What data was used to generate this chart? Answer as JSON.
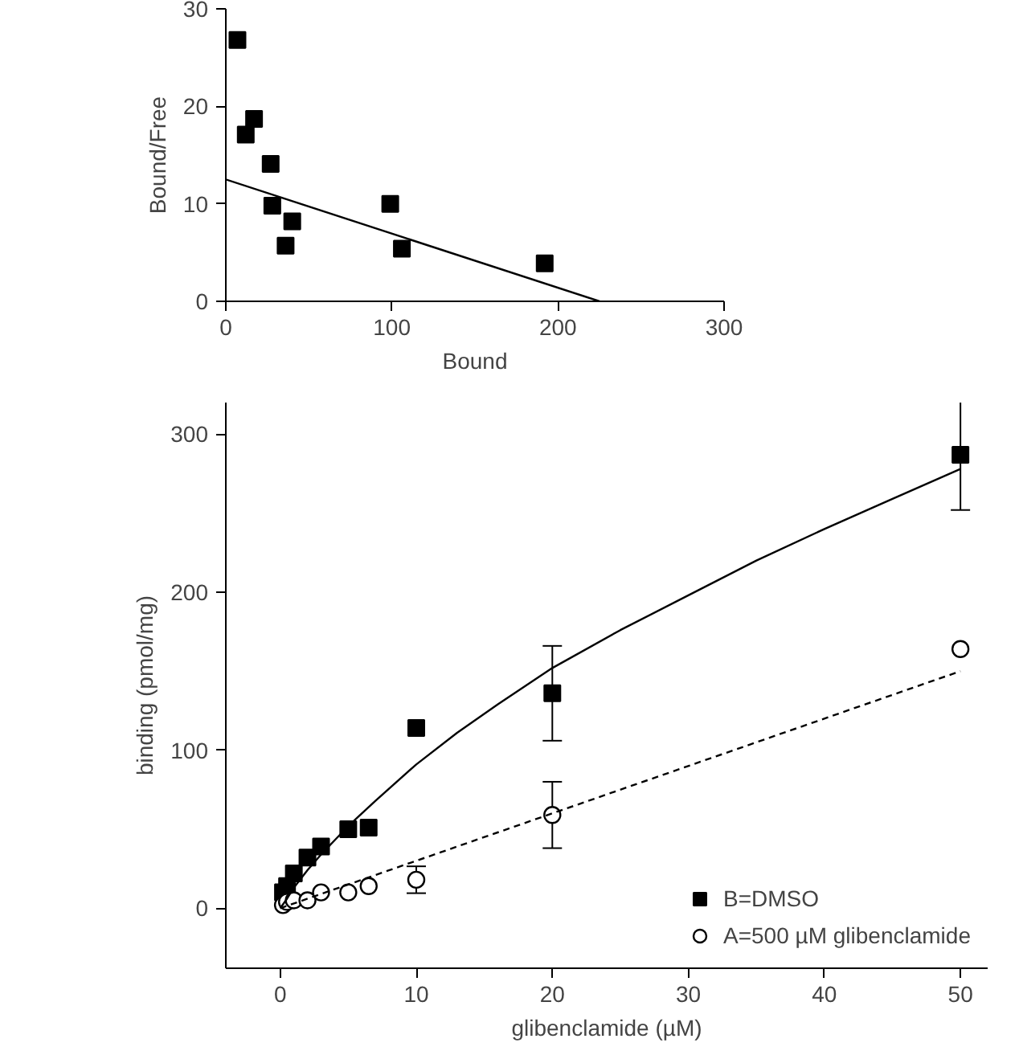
{
  "chart_data": [
    {
      "type": "scatter",
      "xlabel": "Bound",
      "ylabel": "Bound/Free",
      "xlim": [
        0,
        300
      ],
      "ylim": [
        0,
        30
      ],
      "xticks": [
        0,
        100,
        200,
        300
      ],
      "yticks": [
        0,
        10,
        20,
        30
      ],
      "grid": false,
      "legend": false,
      "series": [
        {
          "type": "scatter",
          "marker": "square",
          "color": "#000000",
          "x": [
            7,
            12,
            17,
            27,
            28,
            36,
            40,
            99,
            106,
            192
          ],
          "values": [
            26.8,
            17.1,
            18.7,
            14.1,
            9.8,
            5.7,
            8.2,
            10,
            5.4,
            3.9
          ]
        },
        {
          "type": "line",
          "marker": "none",
          "line_style": "solid",
          "color": "#000000",
          "x": [
            0,
            225
          ],
          "values": [
            12.5,
            0
          ]
        }
      ]
    },
    {
      "type": "scatter",
      "xlabel": "glibenclamide (µM)",
      "ylabel": "binding (pmol/mg)",
      "xlim": [
        -4,
        52
      ],
      "ylim": [
        -38,
        320
      ],
      "xticks": [
        0,
        10,
        20,
        30,
        40,
        50
      ],
      "yticks": [
        0,
        100,
        200,
        300
      ],
      "grid": false,
      "legend": "bottom right",
      "series": [
        {
          "type": "scatter",
          "name": "B=DMSO",
          "marker": "square",
          "color": "#000000",
          "x": [
            0.2,
            0.5,
            1,
            2,
            3,
            5,
            6.5,
            10,
            20,
            50
          ],
          "values": [
            10,
            14,
            22,
            32,
            39,
            50,
            51,
            114,
            136,
            287
          ],
          "errors": [
            null,
            null,
            null,
            null,
            null,
            null,
            null,
            null,
            30,
            35
          ]
        },
        {
          "type": "scatter",
          "name": "A=500 µM glibenclamide",
          "marker": "circle",
          "color": "#000000",
          "x": [
            0.2,
            0.5,
            1,
            2,
            3,
            5,
            6.5,
            10,
            20,
            50
          ],
          "values": [
            2,
            4,
            5,
            5,
            10,
            10,
            14,
            18,
            59,
            164
          ],
          "errors": [
            null,
            null,
            null,
            null,
            null,
            null,
            null,
            8.5,
            21,
            null
          ]
        },
        {
          "type": "line",
          "marker": "none",
          "line_style": "solid",
          "color": "#000000",
          "x": [
            0,
            0.5,
            1,
            2,
            3,
            4,
            5,
            7,
            10,
            13,
            16,
            20,
            25,
            30,
            35,
            40,
            45,
            50
          ],
          "values": [
            0,
            6,
            13,
            24,
            34,
            43,
            52,
            68,
            91,
            111,
            129,
            152,
            176,
            198,
            220,
            240,
            259,
            278
          ]
        },
        {
          "type": "line",
          "marker": "none",
          "line_style": "dashed",
          "color": "#000000",
          "x": [
            0,
            50
          ],
          "values": [
            0,
            150
          ]
        }
      ]
    }
  ]
}
